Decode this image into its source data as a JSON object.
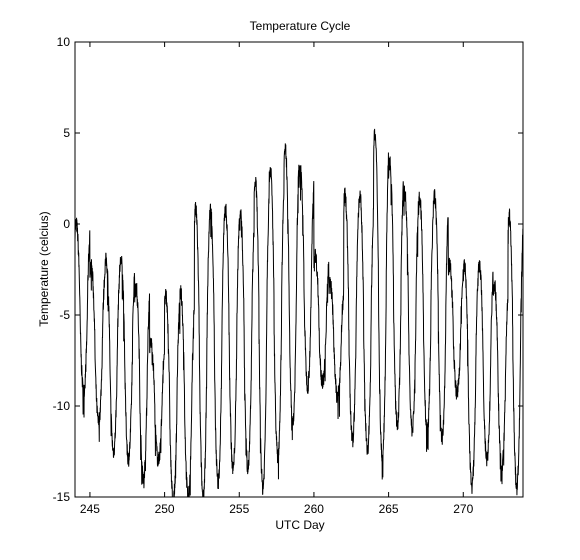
{
  "chart_data": {
    "type": "line",
    "title": "Temperature Cycle",
    "xlabel": "UTC Day",
    "ylabel": "Temperature (celcius)",
    "xlim": [
      244,
      274
    ],
    "ylim": [
      -15,
      10
    ],
    "xticks": [
      245,
      250,
      255,
      260,
      265,
      270
    ],
    "yticks": [
      -15,
      -10,
      -5,
      0,
      5,
      10
    ],
    "grid": false,
    "line_color": "#000000",
    "series": [
      {
        "daily_max": [
          0.0,
          -2.3,
          -2.0,
          -2.0,
          -3.4,
          -6.5,
          -4.0,
          -3.8,
          0.8,
          0.8,
          0.8,
          0.6,
          2.3,
          3.0,
          4.1,
          3.0,
          -1.7,
          -3.3,
          1.6,
          1.5,
          4.9,
          3.4,
          1.7,
          1.4,
          1.5,
          -2.3,
          -2.3,
          -2.3,
          -3.3,
          0.4
        ],
        "daily_min": [
          -9.2,
          -10.9,
          -12.5,
          -12.9,
          -14.0,
          -13.0,
          -15.2,
          -15.0,
          -15.0,
          -14.2,
          -13.5,
          -13.4,
          -14.5,
          -12.8,
          -11.0,
          -8.9,
          -8.7,
          -9.5,
          -11.9,
          -12.4,
          -12.9,
          -11.1,
          -11.3,
          -11.5,
          -11.8,
          -9.3,
          -14.4,
          -13.0,
          -13.4,
          -14.5
        ]
      }
    ]
  }
}
